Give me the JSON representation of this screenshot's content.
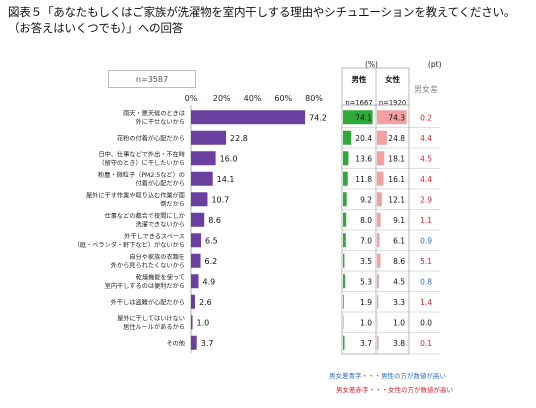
{
  "title_line1": "図表５「あなたもしくはご家族が洗濯物を室内干しする理由やシチュエーションを教えてください。",
  "title_line2": "（お答えはいくつでも）」への回答",
  "sample_size": "n=3587",
  "unit_percent": "(%)",
  "unit_pt": "(pt)",
  "columns": {
    "male_label": "男性",
    "male_n": "n=1667",
    "female_label": "女性",
    "female_n": "n=1920",
    "diff_label": "男女差"
  },
  "legend": {
    "blue": "男女差青字・・・男性の方が数値が高い",
    "red": "男女差赤字・・・女性の方が数値が高い"
  },
  "colors": {
    "bar": "#6b3fa0",
    "male_bar": "#2eaa3a",
    "female_bar": "#f4a0a0",
    "male_higher": "#2a6ebd",
    "female_higher": "#d9232d"
  },
  "chart_data": {
    "type": "bar",
    "orientation": "horizontal",
    "xlim": [
      0,
      80
    ],
    "xticks": [
      "0%",
      "20%",
      "40%",
      "60%",
      "80%"
    ],
    "xtick_values": [
      0,
      20,
      40,
      60,
      80
    ],
    "categories": [
      [
        "雨天・悪天候のときは",
        "外に干せないから"
      ],
      [
        "花粉の付着が心配だから"
      ],
      [
        "日中、仕事などで外出・不在時",
        "（留守のとき）に干したいから"
      ],
      [
        "粉塵・微粒子（PM2.5など）の",
        "付着が心配だから"
      ],
      [
        "屋外に干す作業や取り込む作業が面",
        "倒だから"
      ],
      [
        "仕事などの都合で夜間にしか",
        "洗濯できないから"
      ],
      [
        "外干しできるスペース",
        "（庭・ベランダ・軒下など）がないから"
      ],
      [
        "自分や家族の衣類を",
        "外から見られたくないから"
      ],
      [
        "乾燥機能を使って",
        "室内干しするのは便利だから"
      ],
      [
        "外干しは盗難が心配だから"
      ],
      [
        "屋外に干してはいけない",
        "居住ルールがあるから"
      ],
      [
        "その他"
      ]
    ],
    "values": [
      74.2,
      22.8,
      16.0,
      14.1,
      10.7,
      8.6,
      6.5,
      6.2,
      4.9,
      2.6,
      1.0,
      3.7
    ],
    "value_labels": [
      "74.2",
      "22.8",
      "16.0",
      "14.1",
      "10.7",
      "8.6",
      "6.5",
      "6.2",
      "4.9",
      "2.6",
      "1.0",
      "3.7"
    ],
    "male": [
      "74.1",
      "20.4",
      "13.6",
      "11.8",
      "9.2",
      "8.0",
      "7.0",
      "3.5",
      "5.3",
      "1.9",
      "1.0",
      "3.7"
    ],
    "female": [
      "74.3",
      "24.8",
      "18.1",
      "16.1",
      "12.1",
      "9.1",
      "6.1",
      "8.6",
      "4.5",
      "3.3",
      "1.0",
      "3.8"
    ],
    "diff": [
      "0.2",
      "4.4",
      "4.5",
      "4.4",
      "2.9",
      "1.1",
      "0.9",
      "5.1",
      "0.8",
      "1.4",
      "0.0",
      "0.1"
    ],
    "diff_color": [
      "red",
      "red",
      "red",
      "red",
      "red",
      "red",
      "blue",
      "red",
      "blue",
      "red",
      "black",
      "red"
    ]
  }
}
